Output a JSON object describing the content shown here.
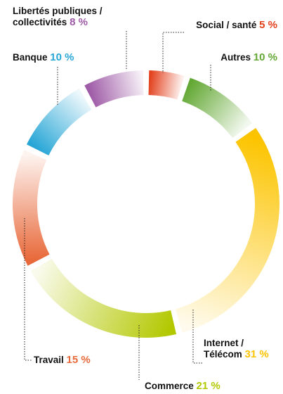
{
  "chart_data": {
    "type": "donut",
    "categories": [
      "Social / santé",
      "Autres",
      "Internet / Télécom",
      "Commerce",
      "Travail",
      "Banque",
      "Libertés publiques / collectivités"
    ],
    "values": [
      5,
      10,
      31,
      21,
      15,
      10,
      8
    ],
    "value_labels": [
      "5 %",
      "10 %",
      "31 %",
      "21 %",
      "15 %",
      "10 %",
      "8 %"
    ],
    "colors": [
      "#e3401c",
      "#63a834",
      "#fcc400",
      "#b3c800",
      "#e8693a",
      "#27a6d6",
      "#9e5aa6"
    ]
  }
}
